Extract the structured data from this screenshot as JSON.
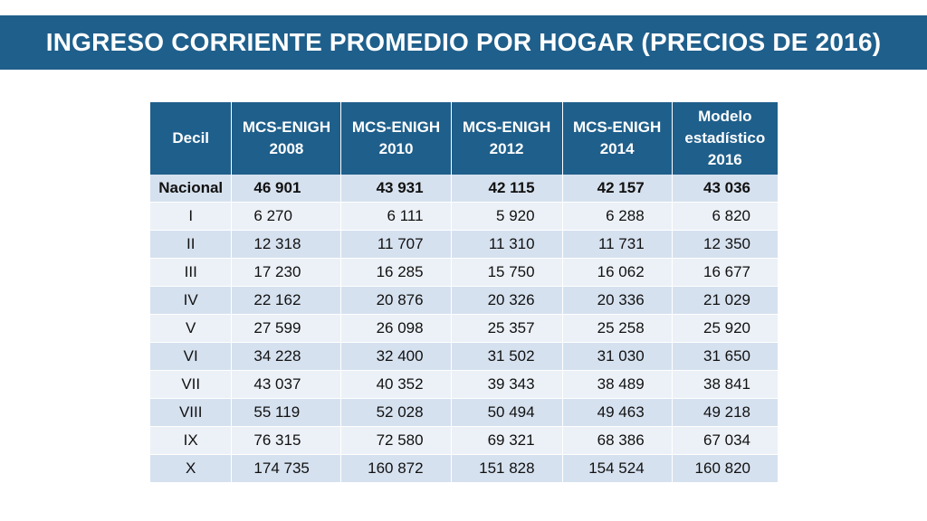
{
  "title": "INGRESO CORRIENTE PROMEDIO POR HOGAR (PRECIOS DE 2016)",
  "table": {
    "headers": [
      [
        "Decil"
      ],
      [
        "MCS-ENIGH",
        "2008"
      ],
      [
        "MCS-ENIGH",
        "2010"
      ],
      [
        "MCS-ENIGH",
        "2012"
      ],
      [
        "MCS-ENIGH",
        "2014"
      ],
      [
        "Modelo",
        "estadístico",
        "2016"
      ]
    ],
    "rows": [
      [
        "Nacional",
        "46 901",
        "43 931",
        "42 115",
        "42 157",
        "43 036"
      ],
      [
        "I",
        "6 270",
        "6 111",
        "5 920",
        "6 288",
        "6 820"
      ],
      [
        "II",
        "12 318",
        "11 707",
        "11 310",
        "11 731",
        "12 350"
      ],
      [
        "III",
        "17 230",
        "16 285",
        "15 750",
        "16 062",
        "16 677"
      ],
      [
        "IV",
        "22 162",
        "20 876",
        "20 326",
        "20 336",
        "21 029"
      ],
      [
        "V",
        "27 599",
        "26 098",
        "25 357",
        "25 258",
        "25 920"
      ],
      [
        "VI",
        "34 228",
        "32 400",
        "31 502",
        "31 030",
        "31 650"
      ],
      [
        "VII",
        "43 037",
        "40 352",
        "39 343",
        "38 489",
        "38 841"
      ],
      [
        "VIII",
        "55 119",
        "52 028",
        "50 494",
        "49 463",
        "49 218"
      ],
      [
        "IX",
        "76 315",
        "72 580",
        "69 321",
        "68 386",
        "67 034"
      ],
      [
        "X",
        "174 735",
        "160 872",
        "151 828",
        "154 524",
        "160 820"
      ]
    ]
  },
  "colors": {
    "header_bg": "#1f5f8b",
    "row_dark": "#d6e1ef",
    "row_light": "#ecf1f7"
  }
}
